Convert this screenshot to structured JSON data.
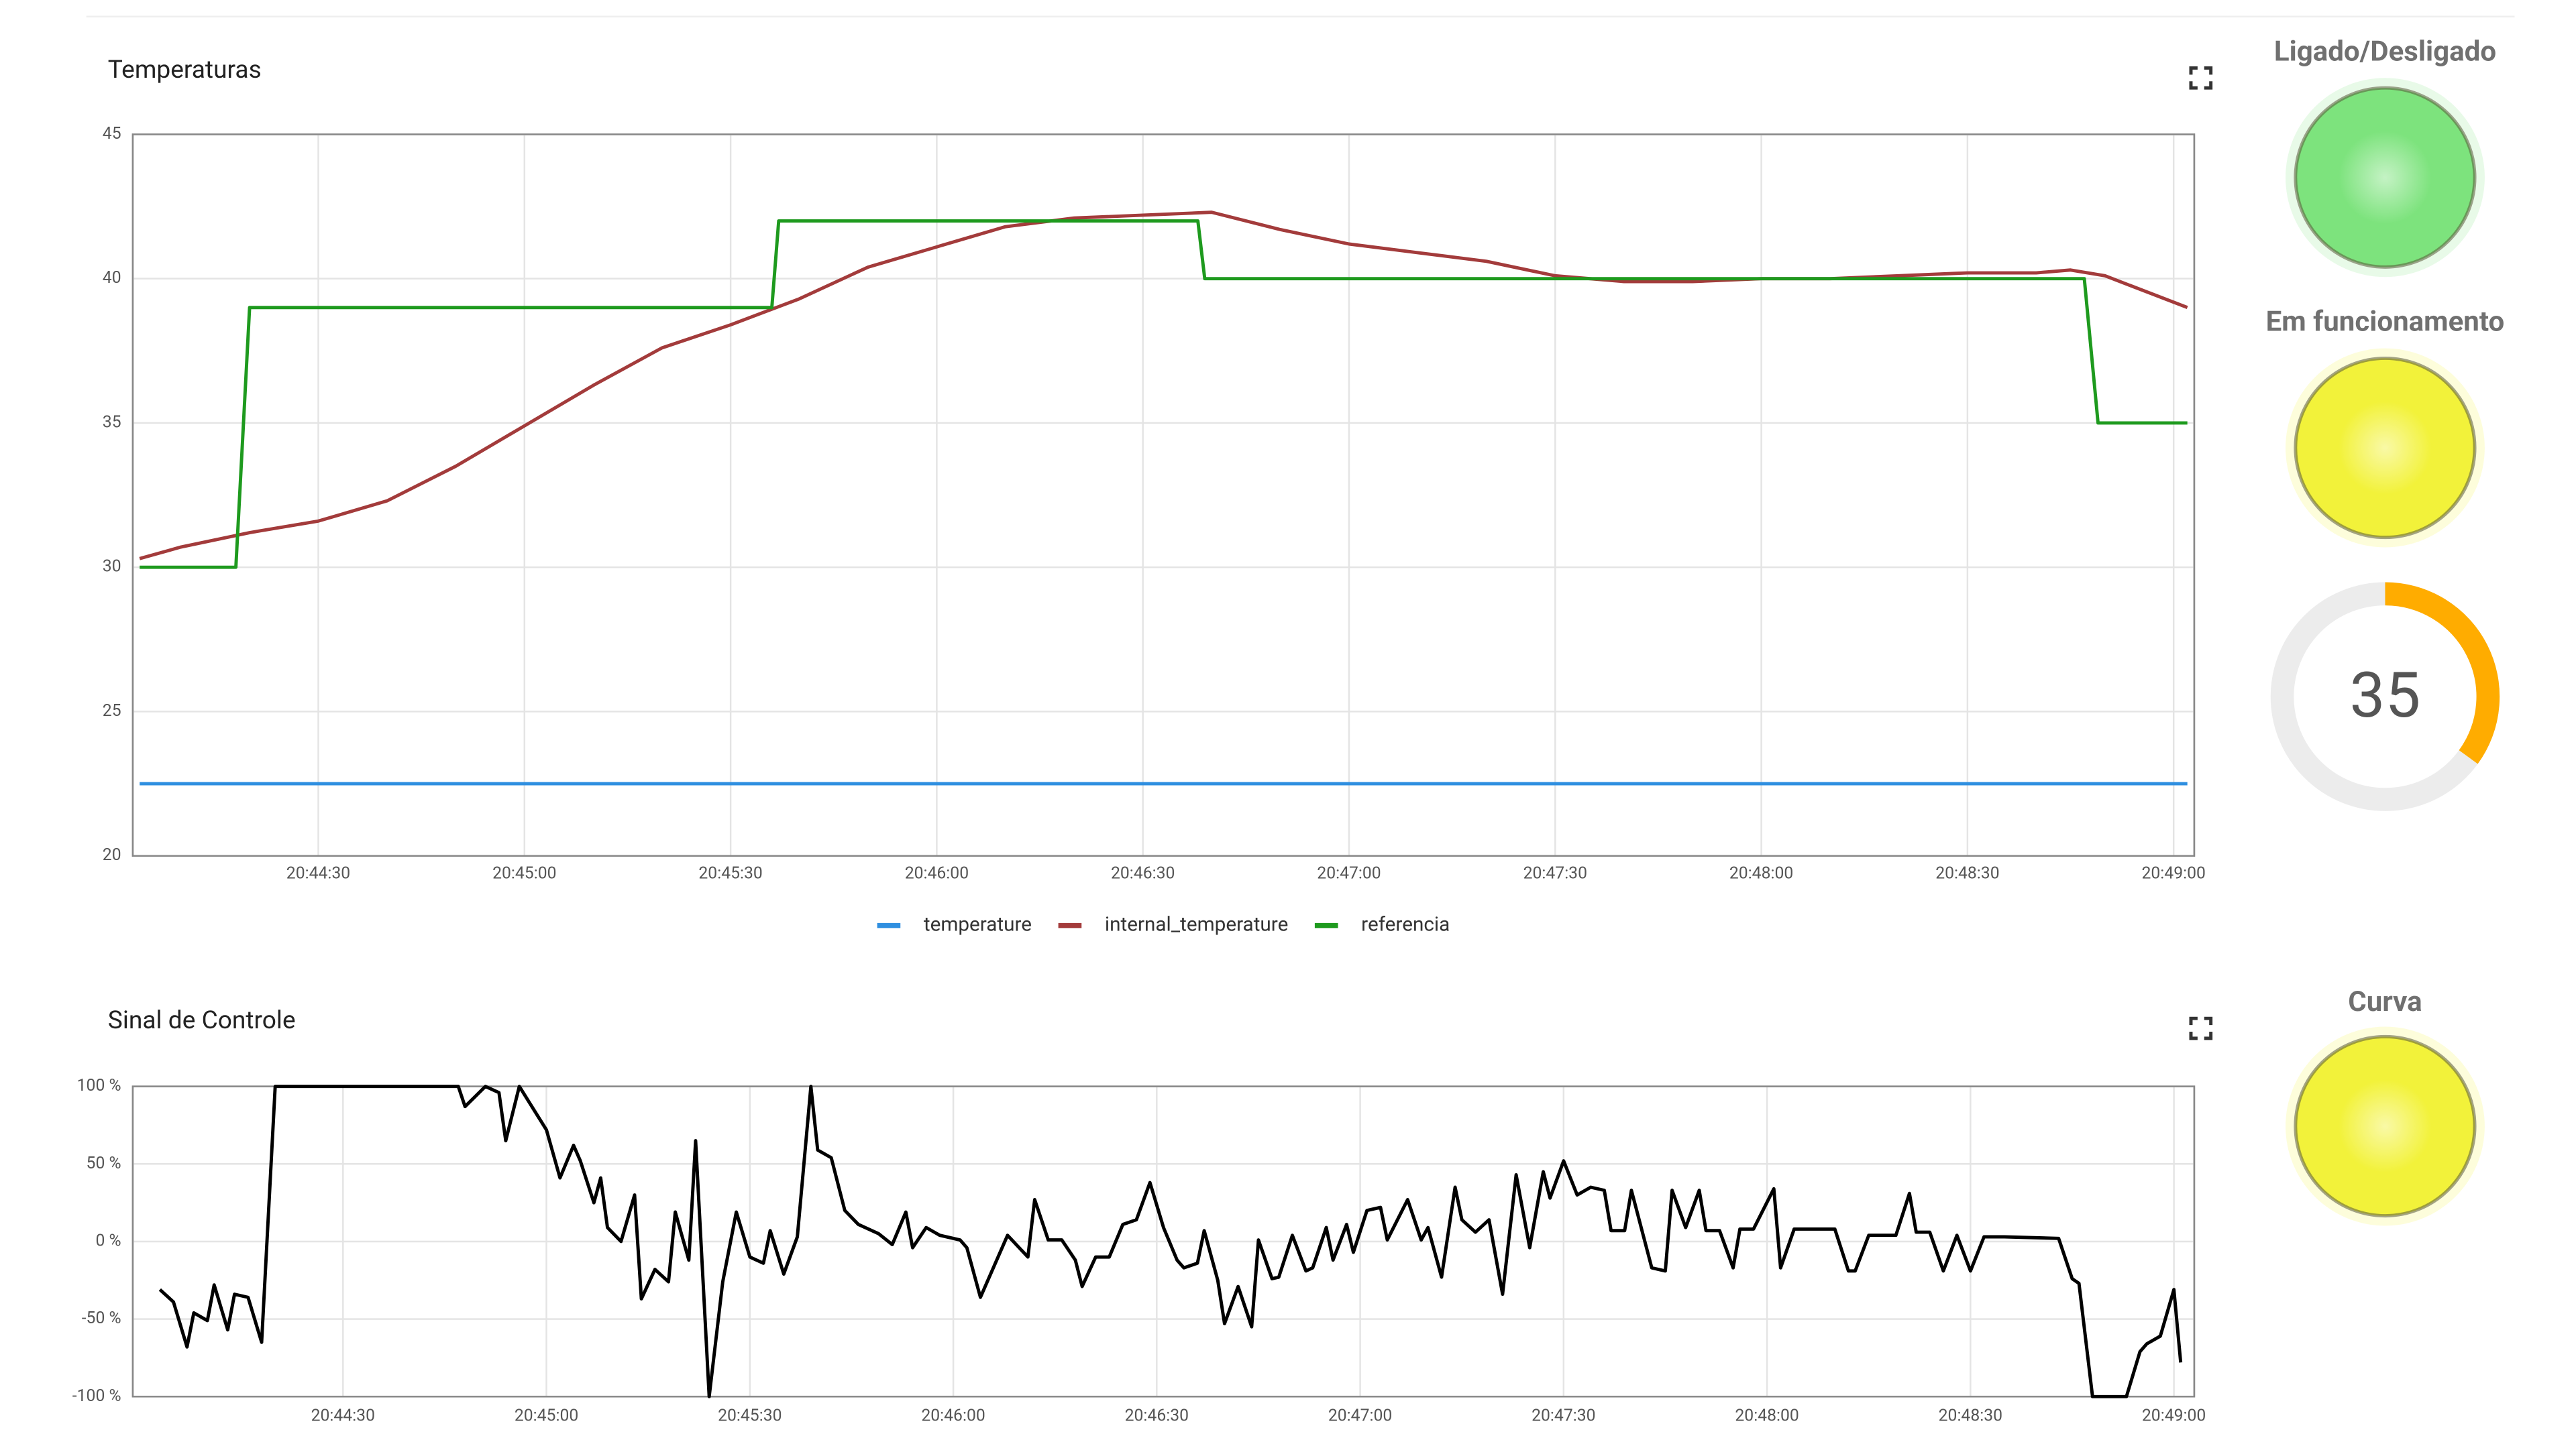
{
  "chart_data": [
    {
      "type": "line",
      "title": "Temperaturas",
      "xlim": [
        "20:44:03",
        "20:49:03"
      ],
      "xticks": [
        "20:44:30",
        "20:45:00",
        "20:45:30",
        "20:46:00",
        "20:46:30",
        "20:47:00",
        "20:47:30",
        "20:48:00",
        "20:48:30",
        "20:49:00"
      ],
      "ylim": [
        20,
        45
      ],
      "yticks": [
        20,
        25,
        30,
        35,
        40,
        45
      ],
      "grid": true,
      "legend": "bottom",
      "series": [
        {
          "name": "temperature",
          "color": "#2f8fe0",
          "x": [
            "20:44:04",
            "20:49:02"
          ],
          "values": [
            22.5,
            22.5
          ]
        },
        {
          "name": "internal_temperature",
          "color": "#a33b3b",
          "x": [
            "20:44:04",
            "20:44:10",
            "20:44:20",
            "20:44:30",
            "20:44:40",
            "20:44:50",
            "20:45:00",
            "20:45:10",
            "20:45:20",
            "20:45:30",
            "20:45:40",
            "20:45:50",
            "20:46:00",
            "20:46:10",
            "20:46:20",
            "20:46:30",
            "20:46:40",
            "20:46:50",
            "20:47:00",
            "20:47:10",
            "20:47:20",
            "20:47:30",
            "20:47:40",
            "20:47:50",
            "20:48:00",
            "20:48:10",
            "20:48:20",
            "20:48:30",
            "20:48:40",
            "20:48:45",
            "20:48:50",
            "20:49:02"
          ],
          "values": [
            30.3,
            30.7,
            31.2,
            31.6,
            32.3,
            33.5,
            34.9,
            36.3,
            37.6,
            38.4,
            39.3,
            40.4,
            41.1,
            41.8,
            42.1,
            42.2,
            42.3,
            41.7,
            41.2,
            40.9,
            40.6,
            40.1,
            39.9,
            39.9,
            40.0,
            40.0,
            40.1,
            40.2,
            40.2,
            40.3,
            40.1,
            39.0
          ]
        },
        {
          "name": "referencia",
          "color": "#1e9a1e",
          "x": [
            "20:44:04",
            "20:44:18",
            "20:44:20",
            "20:45:36",
            "20:45:37",
            "20:46:38",
            "20:46:39",
            "20:48:47",
            "20:48:49",
            "20:49:02"
          ],
          "values": [
            30,
            30,
            39,
            39,
            42,
            42,
            40,
            40,
            35,
            35
          ]
        }
      ]
    },
    {
      "type": "line",
      "title": "Sinal de Controle",
      "xlim": [
        "20:43:59",
        "20:49:03"
      ],
      "xticks": [
        "20:44:30",
        "20:45:00",
        "20:45:30",
        "20:46:00",
        "20:46:30",
        "20:47:00",
        "20:47:30",
        "20:48:00",
        "20:48:30",
        "20:49:00"
      ],
      "ylim": [
        -100,
        100
      ],
      "yticks": [
        {
          "value": -100,
          "label": "-100 %"
        },
        {
          "value": -50,
          "label": "-50 %"
        },
        {
          "value": 0,
          "label": "0 %"
        },
        {
          "value": 50,
          "label": "50 %"
        },
        {
          "value": 100,
          "label": "100 %"
        }
      ],
      "grid": true,
      "series": [
        {
          "color": "#000000",
          "x": [
            "20:44:03",
            "20:44:05",
            "20:44:07",
            "20:44:08",
            "20:44:10",
            "20:44:11",
            "20:44:13",
            "20:44:14",
            "20:44:16",
            "20:44:18",
            "20:44:20",
            "20:44:47",
            "20:44:48",
            "20:44:51",
            "20:44:53",
            "20:44:54",
            "20:44:56",
            "20:44:58",
            "20:45:00",
            "20:45:02",
            "20:45:04",
            "20:45:05",
            "20:45:07",
            "20:45:08",
            "20:45:09",
            "20:45:11",
            "20:45:13",
            "20:45:14",
            "20:45:16",
            "20:45:18",
            "20:45:19",
            "20:45:21",
            "20:45:22",
            "20:45:24",
            "20:45:26",
            "20:45:28",
            "20:45:30",
            "20:45:32",
            "20:45:33",
            "20:45:35",
            "20:45:37",
            "20:45:39",
            "20:45:40",
            "20:45:42",
            "20:45:44",
            "20:45:46",
            "20:45:49",
            "20:45:51",
            "20:45:53",
            "20:45:54",
            "20:45:56",
            "20:45:58",
            "20:46:01",
            "20:46:02",
            "20:46:04",
            "20:46:06",
            "20:46:08",
            "20:46:11",
            "20:46:12",
            "20:46:14",
            "20:46:16",
            "20:46:18",
            "20:46:19",
            "20:46:21",
            "20:46:23",
            "20:46:25",
            "20:46:27",
            "20:46:29",
            "20:46:31",
            "20:46:33",
            "20:46:34",
            "20:46:36",
            "20:46:37",
            "20:46:39",
            "20:46:40",
            "20:46:42",
            "20:46:44",
            "20:46:45",
            "20:46:47",
            "20:46:48",
            "20:46:50",
            "20:46:52",
            "20:46:53",
            "20:46:55",
            "20:46:56",
            "20:46:58",
            "20:46:59",
            "20:47:01",
            "20:47:03",
            "20:47:04",
            "20:47:07",
            "20:47:09",
            "20:47:10",
            "20:47:12",
            "20:47:14",
            "20:47:15",
            "20:47:17",
            "20:47:19",
            "20:47:21",
            "20:47:23",
            "20:47:25",
            "20:47:27",
            "20:47:28",
            "20:47:30",
            "20:47:32",
            "20:47:34",
            "20:47:36",
            "20:47:37",
            "20:47:39",
            "20:47:40",
            "20:47:43",
            "20:47:45",
            "20:47:46",
            "20:47:48",
            "20:47:50",
            "20:47:51",
            "20:47:53",
            "20:47:55",
            "20:47:56",
            "20:47:58",
            "20:48:01",
            "20:48:02",
            "20:48:04",
            "20:48:10",
            "20:48:12",
            "20:48:13",
            "20:48:15",
            "20:48:19",
            "20:48:21",
            "20:48:22",
            "20:48:24",
            "20:48:26",
            "20:48:28",
            "20:48:30",
            "20:48:32",
            "20:48:35",
            "20:48:43",
            "20:48:45",
            "20:48:46",
            "20:48:48",
            "20:48:53",
            "20:48:55",
            "20:48:56",
            "20:48:58",
            "20:49:00",
            "20:49:01"
          ],
          "values": [
            -31,
            -39,
            -68,
            -46,
            -51,
            -28,
            -57,
            -34,
            -36,
            -65,
            100,
            100,
            87,
            100,
            96,
            65,
            100,
            86,
            72,
            41,
            62,
            52,
            25,
            41,
            9,
            0,
            30,
            -37,
            -18,
            -26,
            19,
            -12,
            65,
            -100,
            -26,
            19,
            -10,
            -14,
            7,
            -21,
            3,
            100,
            59,
            54,
            20,
            11,
            5,
            -2,
            19,
            -4,
            9,
            4,
            1,
            -4,
            -36,
            -16,
            4,
            -10,
            27,
            1,
            1,
            -12,
            -29,
            -10,
            -10,
            11,
            14,
            38,
            9,
            -12,
            -17,
            -14,
            7,
            -25,
            -53,
            -29,
            -55,
            1,
            -24,
            -23,
            4,
            -19,
            -17,
            9,
            -12,
            11,
            -7,
            20,
            22,
            1,
            27,
            1,
            9,
            -23,
            35,
            14,
            6,
            14,
            -34,
            43,
            -4,
            45,
            28,
            52,
            30,
            35,
            33,
            7,
            7,
            33,
            -17,
            -19,
            33,
            9,
            33,
            7,
            7,
            -17,
            8,
            8,
            34,
            -17,
            8,
            8,
            -19,
            -19,
            4,
            4,
            31,
            6,
            6,
            -19,
            4,
            -19,
            3,
            3,
            2,
            -24,
            -27,
            -100,
            -100,
            -71,
            -66,
            -61,
            -31,
            -78
          ]
        }
      ]
    }
  ],
  "indicators": [
    {
      "title": "Ligado/Desligado",
      "color": "#7de37d"
    },
    {
      "title": "Em funcionamento",
      "color": "#f2f23a"
    },
    {
      "title": "Curva",
      "color": "#f2f23a"
    }
  ],
  "gauge": {
    "value": 35,
    "lim": [
      0,
      100
    ],
    "color": "#ffac00"
  }
}
